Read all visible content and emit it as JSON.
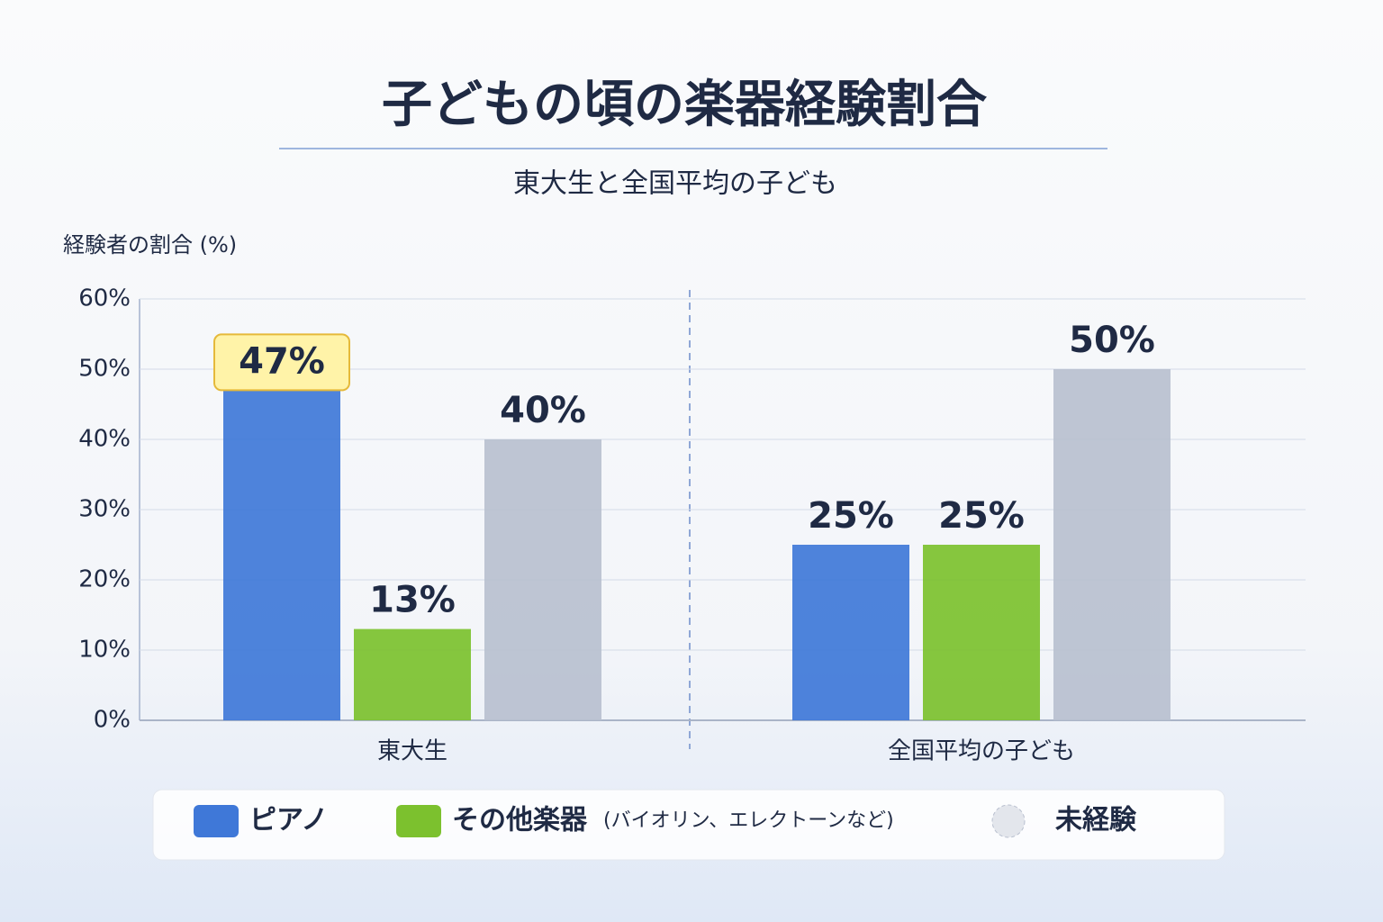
{
  "chart_data": {
    "type": "bar",
    "title": "子どもの頃の楽器経験割合",
    "subtitle": "東大生と全国平均の子ども",
    "y_label": "経験者の割合 (%)",
    "categories": [
      "東大生",
      "全国平均の子ども"
    ],
    "series": [
      {
        "name": "ピアノ",
        "color": "#3f78d8",
        "values": [
          47,
          25
        ],
        "value_labels": [
          "47%",
          "25%"
        ]
      },
      {
        "name": "その他楽器",
        "legend_note": "(バイオリン、エレクトーンなど)",
        "color": "#7cc12e",
        "values": [
          13,
          25
        ],
        "value_labels": [
          "13%",
          "25%"
        ]
      },
      {
        "name": "未経験",
        "color": "#b9c0cf",
        "values": [
          40,
          50
        ],
        "value_labels": [
          "40%",
          "50%"
        ]
      }
    ],
    "ylim": [
      0,
      60
    ],
    "yticks": [
      {
        "value": 0,
        "label": "0%"
      },
      {
        "value": 10,
        "label": "10%"
      },
      {
        "value": 20,
        "label": "20%"
      },
      {
        "value": 30,
        "label": "30%"
      },
      {
        "value": 40,
        "label": "40%"
      },
      {
        "value": 50,
        "label": "50%"
      },
      {
        "value": 60,
        "label": "60%"
      }
    ],
    "grid": true
  }
}
